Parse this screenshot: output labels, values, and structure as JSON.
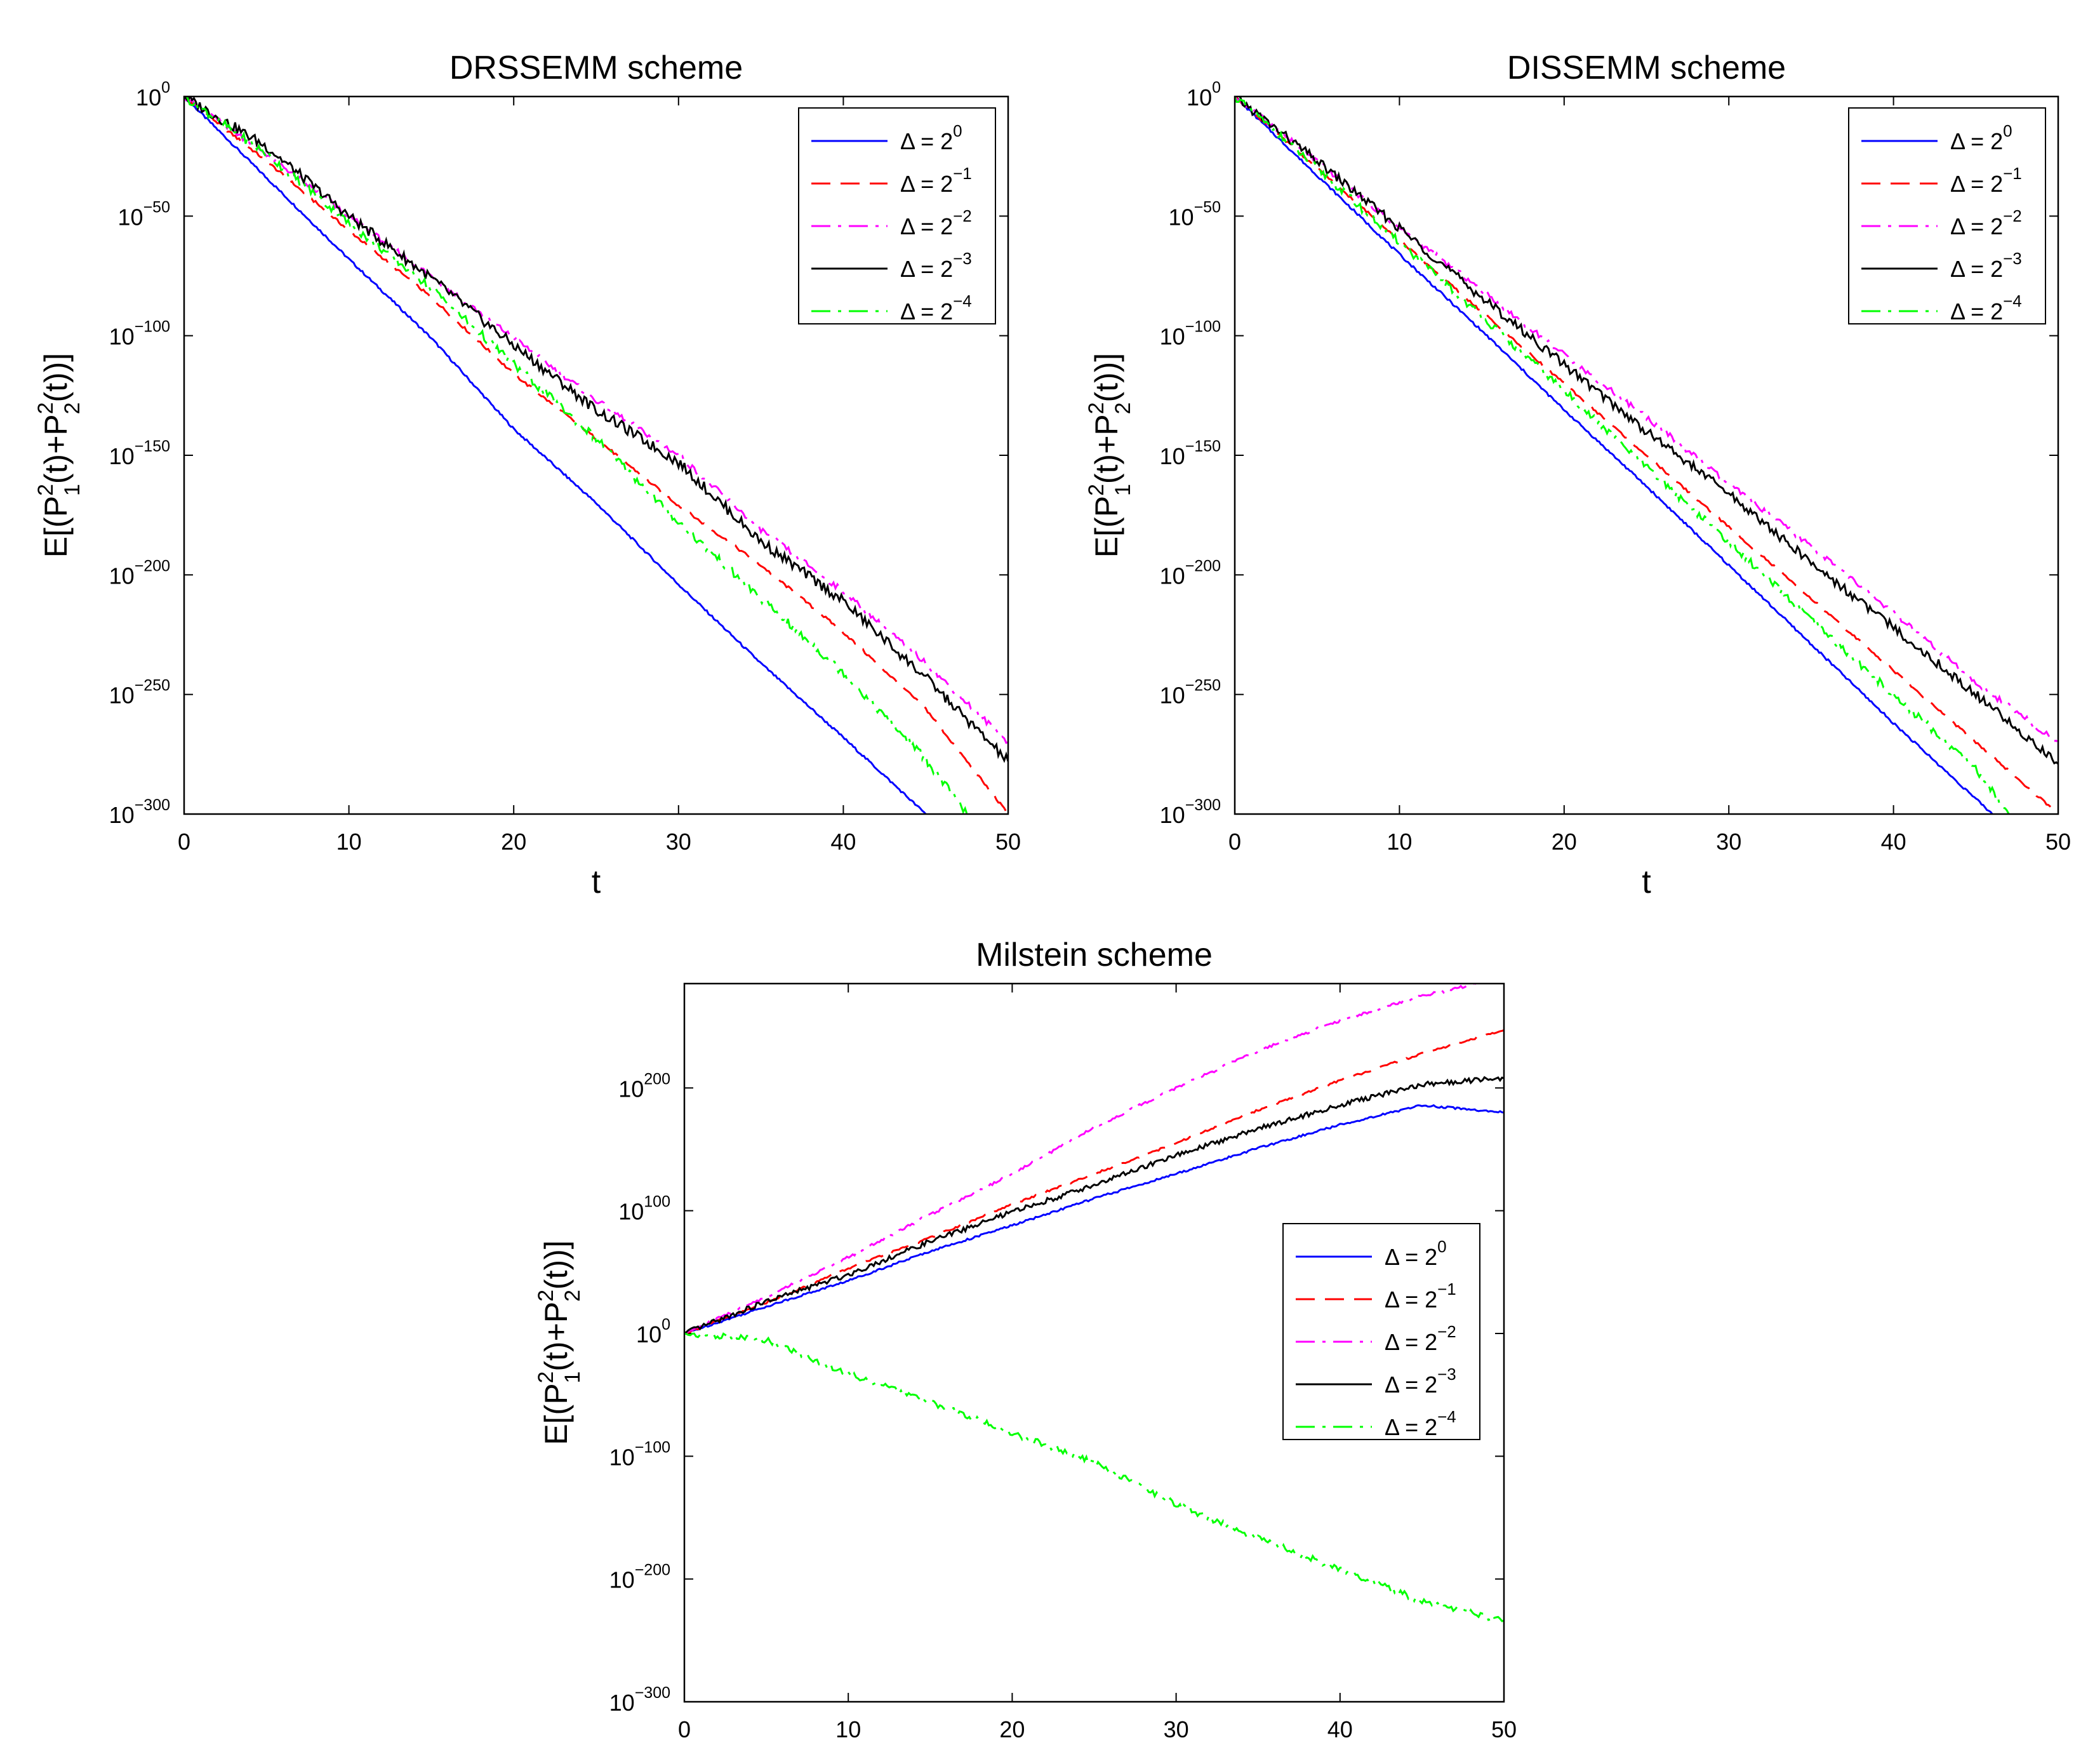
{
  "chart_data": [
    {
      "type": "line",
      "title": "DRSSEMM scheme",
      "xlabel": "t",
      "ylabel": "E[(P_1^2(t)+P_2^2(t))]",
      "xlim": [
        0,
        50
      ],
      "ylim_exponent": [
        -300,
        0
      ],
      "xticks": [
        "0",
        "10",
        "20",
        "30",
        "40",
        "50"
      ],
      "yticks": [
        {
          "base": "10",
          "exp": "0",
          "value": 0
        },
        {
          "base": "10",
          "exp": "−50",
          "value": -50
        },
        {
          "base": "10",
          "exp": "−100",
          "value": -100
        },
        {
          "base": "10",
          "exp": "−150",
          "value": -150
        },
        {
          "base": "10",
          "exp": "−200",
          "value": -200
        },
        {
          "base": "10",
          "exp": "−250",
          "value": -250
        },
        {
          "base": "10",
          "exp": "−300",
          "value": -300
        }
      ],
      "legend_position": "top-right",
      "series": [
        {
          "name": "Δ = 2^0",
          "label": "Δ = 2",
          "exp": "0",
          "color": "#0000ff",
          "dash": "solid",
          "x": [
            0,
            5,
            10,
            15,
            20,
            25,
            30,
            35,
            40,
            45
          ],
          "y": [
            0,
            -34,
            -68,
            -101,
            -139,
            -170,
            -204,
            -237,
            -268,
            -300
          ],
          "noise": 0.5
        },
        {
          "name": "Δ = 2^-1",
          "label": "Δ = 2",
          "exp": "−1",
          "color": "#ff0000",
          "dash": "dashed",
          "x": [
            0,
            5,
            10,
            15,
            20,
            25,
            30,
            35,
            40,
            45,
            50
          ],
          "y": [
            0,
            -27,
            -56,
            -84,
            -116,
            -143,
            -171,
            -196,
            -224,
            -256,
            -300
          ],
          "noise": 0.6
        },
        {
          "name": "Δ = 2^-2",
          "label": "Δ = 2",
          "exp": "−2",
          "color": "#ff00ff",
          "dash": "dashdot",
          "x": [
            0,
            5,
            10,
            15,
            20,
            25,
            30,
            35,
            40,
            45,
            50
          ],
          "y": [
            0,
            -24,
            -50,
            -75,
            -101,
            -127,
            -150,
            -181,
            -207,
            -237,
            -270
          ],
          "noise": 1.2
        },
        {
          "name": "Δ = 2^-3",
          "label": "Δ = 2",
          "exp": "−3",
          "color": "#000000",
          "dash": "solid",
          "x": [
            0,
            5,
            10,
            15,
            20,
            25,
            30,
            35,
            40,
            45,
            50
          ],
          "y": [
            0,
            -21,
            -50,
            -76,
            -104,
            -131,
            -153,
            -186,
            -211,
            -243,
            -278
          ],
          "noise": 2.2
        },
        {
          "name": "Δ = 2^-4",
          "label": "Δ = 2",
          "exp": "−4",
          "color": "#00ff00",
          "dash": "dashdot",
          "x": [
            0,
            5,
            10,
            15,
            20,
            25,
            30,
            35,
            40,
            45,
            47.5
          ],
          "y": [
            0,
            -24,
            -53,
            -80,
            -112,
            -143,
            -178,
            -210,
            -241,
            -277,
            -300
          ],
          "noise": 1.8
        }
      ]
    },
    {
      "type": "line",
      "title": "DISSEMM scheme",
      "xlabel": "t",
      "ylabel": "E[(P_1^2(t)+P_2^2(t))]",
      "xlim": [
        0,
        50
      ],
      "ylim_exponent": [
        -300,
        0
      ],
      "xticks": [
        "0",
        "10",
        "20",
        "30",
        "40",
        "50"
      ],
      "yticks": [
        {
          "base": "10",
          "exp": "0",
          "value": 0
        },
        {
          "base": "10",
          "exp": "−50",
          "value": -50
        },
        {
          "base": "10",
          "exp": "−100",
          "value": -100
        },
        {
          "base": "10",
          "exp": "−150",
          "value": -150
        },
        {
          "base": "10",
          "exp": "−200",
          "value": -200
        },
        {
          "base": "10",
          "exp": "−250",
          "value": -250
        },
        {
          "base": "10",
          "exp": "−300",
          "value": -300
        }
      ],
      "legend_position": "top-right",
      "series": [
        {
          "name": "Δ = 2^0",
          "label": "Δ = 2",
          "exp": "0",
          "color": "#0000ff",
          "dash": "solid",
          "x": [
            0,
            5,
            10,
            15,
            20,
            25,
            30,
            35,
            40,
            46
          ],
          "y": [
            0,
            -33,
            -66,
            -98,
            -131,
            -163,
            -196,
            -229,
            -262,
            -300
          ],
          "noise": 0.5
        },
        {
          "name": "Δ = 2^-1",
          "label": "Δ = 2",
          "exp": "−1",
          "color": "#ff0000",
          "dash": "dashed",
          "x": [
            0,
            5,
            10,
            15,
            20,
            25,
            30,
            35,
            40,
            45,
            50
          ],
          "y": [
            0,
            -30,
            -60,
            -90,
            -120,
            -150,
            -180,
            -210,
            -240,
            -270,
            -300
          ],
          "noise": 0.5
        },
        {
          "name": "Δ = 2^-2",
          "label": "Δ = 2",
          "exp": "−2",
          "color": "#ff00ff",
          "dash": "dashdot",
          "x": [
            0,
            5,
            10,
            15,
            20,
            25,
            30,
            35,
            40,
            45,
            50
          ],
          "y": [
            0,
            -27,
            -55,
            -81,
            -108,
            -134,
            -162,
            -188,
            -216,
            -245,
            -270
          ],
          "noise": 1.2
        },
        {
          "name": "Δ = 2^-3",
          "label": "Δ = 2",
          "exp": "−3",
          "color": "#000000",
          "dash": "solid",
          "x": [
            0,
            5,
            10,
            15,
            20,
            25,
            30,
            35,
            40,
            45,
            50
          ],
          "y": [
            0,
            -27,
            -55,
            -84,
            -112,
            -140,
            -166,
            -195,
            -222,
            -250,
            -279
          ],
          "noise": 2.0
        },
        {
          "name": "Δ = 2^-4",
          "label": "Δ = 2",
          "exp": "−4",
          "color": "#00ff00",
          "dash": "dashdot",
          "x": [
            0,
            5,
            10,
            15,
            20,
            25,
            30,
            35,
            40,
            45,
            47
          ],
          "y": [
            0,
            -30,
            -61,
            -92,
            -123,
            -155,
            -186,
            -219,
            -250,
            -281,
            -300
          ],
          "noise": 1.6
        }
      ]
    },
    {
      "type": "line",
      "title": "Milstein scheme",
      "xlabel": "",
      "ylabel": "E[(P_1^2(t)+P_2^2(t))]",
      "xlim": [
        0,
        50
      ],
      "ylim_exponent": [
        -300,
        285
      ],
      "xticks": [
        "0",
        "10",
        "20",
        "30",
        "40",
        "50"
      ],
      "yticks": [
        {
          "base": "10",
          "exp": "200",
          "value": 200
        },
        {
          "base": "10",
          "exp": "100",
          "value": 100
        },
        {
          "base": "10",
          "exp": "0",
          "value": 0
        },
        {
          "base": "10",
          "exp": "−100",
          "value": -100
        },
        {
          "base": "10",
          "exp": "−200",
          "value": -200
        },
        {
          "base": "10",
          "exp": "−300",
          "value": -300
        }
      ],
      "legend_position": "middle-right",
      "series": [
        {
          "name": "Δ = 2^0",
          "label": "Δ = 2",
          "exp": "0",
          "color": "#0000ff",
          "dash": "solid",
          "x": [
            0,
            5,
            10,
            15,
            20,
            25,
            30,
            35,
            40,
            45,
            50
          ],
          "y": [
            0,
            22,
            43,
            67,
            88,
            110,
            130,
            151,
            170,
            186,
            180
          ],
          "noise": 0.8
        },
        {
          "name": "Δ = 2^-1",
          "label": "Δ = 2",
          "exp": "−1",
          "color": "#ff0000",
          "dash": "dashed",
          "x": [
            0,
            5,
            10,
            15,
            20,
            25,
            30,
            35,
            40,
            45,
            50
          ],
          "y": [
            0,
            25,
            53,
            78,
            105,
            130,
            155,
            182,
            206,
            228,
            247
          ],
          "noise": 0.8
        },
        {
          "name": "Δ = 2^-2",
          "label": "Δ = 2",
          "exp": "−2",
          "color": "#ff00ff",
          "dash": "dashdot",
          "x": [
            0,
            5,
            10,
            15,
            20,
            25,
            30,
            35,
            40,
            45,
            49
          ],
          "y": [
            0,
            30,
            62,
            97,
            130,
            168,
            200,
            230,
            255,
            275,
            287
          ],
          "noise": 1.2
        },
        {
          "name": "Δ = 2^-3",
          "label": "Δ = 2",
          "exp": "−3",
          "color": "#000000",
          "dash": "solid",
          "x": [
            0,
            5,
            10,
            15,
            20,
            25,
            30,
            35,
            40,
            45,
            50
          ],
          "y": [
            0,
            26,
            48,
            75,
            99,
            121,
            145,
            167,
            186,
            203,
            208
          ],
          "noise": 2.0
        },
        {
          "name": "Δ = 2^-4",
          "label": "Δ = 2",
          "exp": "−4",
          "color": "#00ff00",
          "dash": "dashdot",
          "x": [
            0,
            5,
            10,
            15,
            20,
            25,
            30,
            35,
            40,
            45,
            50
          ],
          "y": [
            0,
            -5,
            -33,
            -56,
            -81,
            -105,
            -139,
            -167,
            -192,
            -218,
            -234
          ],
          "noise": 2.5
        }
      ]
    }
  ]
}
